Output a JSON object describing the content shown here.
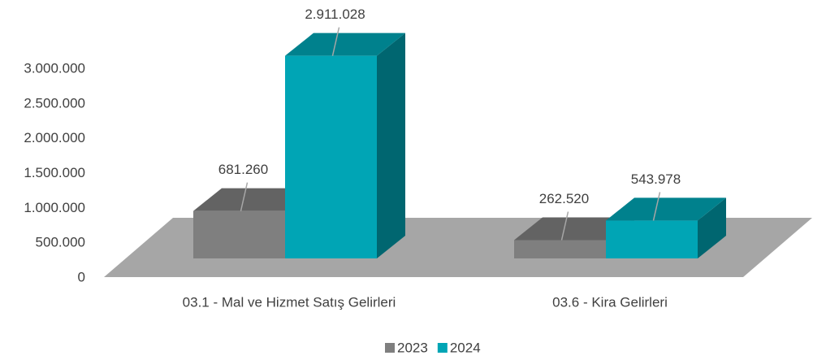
{
  "chart_data": {
    "type": "bar3d",
    "categories": [
      "03.1 - Mal ve Hizmet Satış Gelirleri",
      "03.6 - Kira Gelirleri"
    ],
    "series": [
      {
        "name": "2023",
        "color": "#7f7f7f",
        "values": [
          681260,
          262520
        ],
        "value_labels": [
          "681.260",
          "262.520"
        ]
      },
      {
        "name": "2024",
        "color": "#00a5b5",
        "values": [
          2911028,
          543978
        ],
        "value_labels": [
          "2.911.028",
          "543.978"
        ]
      }
    ],
    "ylim": [
      0,
      3000000
    ],
    "yticks": [
      {
        "value": 0,
        "label": "0"
      },
      {
        "value": 500000,
        "label": "500.000"
      },
      {
        "value": 1000000,
        "label": "1.000.000"
      },
      {
        "value": 1500000,
        "label": "1.500.000"
      },
      {
        "value": 2000000,
        "label": "2.000.000"
      },
      {
        "value": 2500000,
        "label": "2.500.000"
      },
      {
        "value": 3000000,
        "label": "3.000.000"
      }
    ],
    "legend": "bottom"
  }
}
